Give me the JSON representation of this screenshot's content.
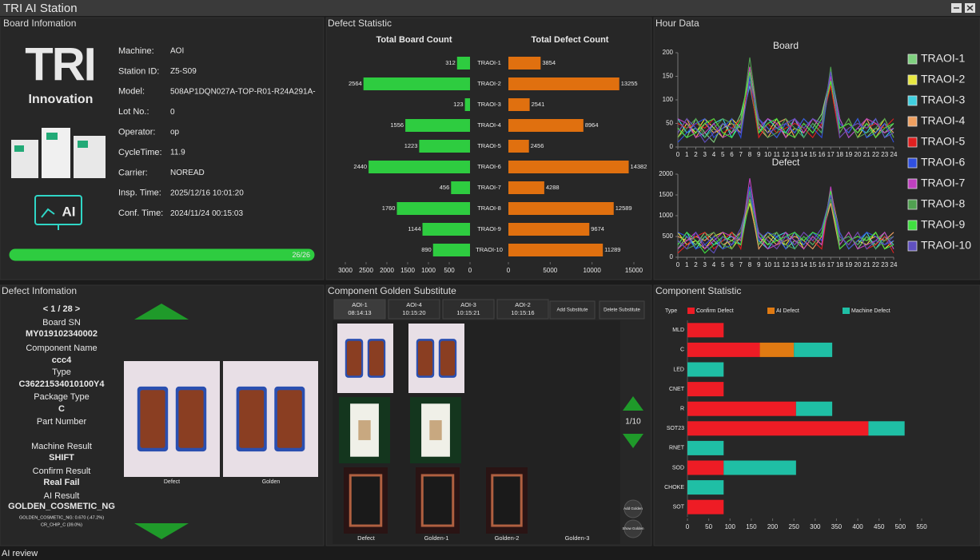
{
  "header": {
    "title": "TRI AI Station"
  },
  "board_info": {
    "heading": "Board Infomation",
    "logo": "TRI",
    "logo_sub": "Innovation",
    "badge": "AI",
    "fields": [
      {
        "label": "Machine:",
        "value": "AOI"
      },
      {
        "label": "Station ID:",
        "value": "Z5-S09"
      },
      {
        "label": "Model:",
        "value": "508AP1DQN027A-TOP-R01-R24A291A-"
      },
      {
        "label": "Lot No.:",
        "value": "0"
      },
      {
        "label": "Operator:",
        "value": "op"
      },
      {
        "label": "CycleTime:",
        "value": "11.9"
      },
      {
        "label": "Carrier:",
        "value": "NOREAD"
      },
      {
        "label": "Insp. Time:",
        "value": "2025/12/16 10:01:20"
      },
      {
        "label": "Conf. Time:",
        "value": "2024/11/24 00:15:03"
      }
    ],
    "progress": {
      "label": "26/26",
      "value": 26,
      "max": 26
    }
  },
  "panels": {
    "defect_statistic": "Defect Statistic",
    "hour_data": "Hour Data",
    "component_golden": "Component Golden Substitute",
    "component_statistic": "Component Statistic"
  },
  "defect_info": {
    "heading": "Defect Infomation",
    "nav": "< 1 / 28 >",
    "fields": [
      {
        "label": "Board SN",
        "value": "MY019102340002"
      },
      {
        "label": "Component Name",
        "value": "ccc4"
      },
      {
        "label": "Type",
        "value": "C36221534010100Y4"
      },
      {
        "label": "Package Type",
        "value": "C"
      },
      {
        "label": "Part Number"
      },
      {
        "label": "Machine Result",
        "value": "SHIFT"
      },
      {
        "label": "Confirm Result",
        "value": "Real Fail"
      },
      {
        "label": "AI Result",
        "value": "GOLDEN_COSMETIC_NG"
      }
    ],
    "ai_details": [
      "GOLDEN_COSMETIC_NG: 0.670 (-47.2%)",
      "CR_CHIP_C (39.0%)"
    ],
    "images": [
      "Defect",
      "Golden"
    ]
  },
  "golden": {
    "tabs": [
      {
        "name": "AOI-1",
        "time": "08:14:13"
      },
      {
        "name": "AOI-4",
        "time": "10:15:20"
      },
      {
        "name": "AOI-3",
        "time": "10:15:21"
      },
      {
        "name": "AOI-2",
        "time": "10:15:16"
      }
    ],
    "buttons": [
      "Add Substitute",
      "Delete Substitute"
    ],
    "page": "1/10",
    "side_buttons": [
      "Add Golden",
      "Show Golden"
    ],
    "images": [
      "Defect",
      "Golden-1",
      "Golden-2",
      "Golden-3"
    ]
  },
  "chart_data": [
    {
      "type": "bar",
      "orientation": "horizontal",
      "title": "Total Board Count",
      "color": "#2ecc40",
      "categories": [
        "TRAOI-1",
        "TRAOI-2",
        "TRAOI-3",
        "TRAOI-4",
        "TRAOI-5",
        "TRAOI-6",
        "TRAOI-7",
        "TRAOI-8",
        "TRAOI-9",
        "TRAOI-10"
      ],
      "values": [
        312,
        2564,
        123,
        1556,
        1223,
        2440,
        456,
        1760,
        1144,
        890
      ],
      "xlim": [
        3000,
        0
      ],
      "xticks": [
        3000,
        2500,
        2000,
        1500,
        1000,
        500,
        0
      ]
    },
    {
      "type": "bar",
      "orientation": "horizontal",
      "title": "Total Defect Count",
      "color": "#e0700f",
      "values": [
        3854,
        13255,
        2541,
        8964,
        2456,
        14382,
        4288,
        12589,
        9674,
        11289
      ],
      "xlim": [
        0,
        15000
      ],
      "xticks": [
        0,
        5000,
        10000,
        15000
      ]
    },
    {
      "type": "line",
      "title": "Board",
      "x": [
        0,
        1,
        2,
        3,
        4,
        5,
        6,
        7,
        8,
        9,
        10,
        11,
        12,
        13,
        14,
        15,
        16,
        17,
        18,
        19,
        20,
        21,
        22,
        23,
        24
      ],
      "xlim": [
        0,
        24
      ],
      "xticks": [
        0,
        1,
        2,
        3,
        4,
        5,
        6,
        7,
        8,
        9,
        10,
        11,
        12,
        13,
        14,
        15,
        16,
        17,
        18,
        19,
        20,
        21,
        22,
        23,
        24
      ],
      "ylim": [
        0,
        200
      ],
      "yticks": [
        0,
        50,
        100,
        150,
        200
      ],
      "series": [
        {
          "name": "TRAOI-1",
          "color": "#7fd17f",
          "values": [
            40,
            20,
            60,
            30,
            10,
            50,
            30,
            70,
            150,
            60,
            40,
            20,
            50,
            30,
            60,
            40,
            70,
            150,
            50,
            30,
            60,
            20,
            40,
            30,
            50
          ]
        },
        {
          "name": "TRAOI-2",
          "color": "#e8e840",
          "values": [
            20,
            50,
            30,
            60,
            40,
            20,
            60,
            40,
            170,
            50,
            30,
            60,
            20,
            40,
            30,
            60,
            40,
            140,
            30,
            60,
            20,
            50,
            30,
            60,
            20
          ]
        },
        {
          "name": "TRAOI-3",
          "color": "#40d0e0",
          "values": [
            60,
            30,
            40,
            20,
            50,
            60,
            20,
            50,
            130,
            30,
            60,
            40,
            30,
            60,
            20,
            50,
            30,
            160,
            60,
            20,
            40,
            30,
            60,
            20,
            40
          ]
        },
        {
          "name": "TRAOI-4",
          "color": "#f0a060",
          "values": [
            30,
            60,
            20,
            50,
            30,
            40,
            50,
            30,
            160,
            40,
            20,
            50,
            60,
            20,
            50,
            30,
            60,
            150,
            40,
            50,
            30,
            60,
            20,
            50,
            30
          ]
        },
        {
          "name": "TRAOI-5",
          "color": "#e02020",
          "values": [
            50,
            40,
            50,
            40,
            60,
            30,
            40,
            60,
            140,
            20,
            50,
            30,
            40,
            50,
            40,
            20,
            50,
            130,
            20,
            40,
            50,
            40,
            50,
            40,
            60
          ]
        },
        {
          "name": "TRAOI-6",
          "color": "#3050e0",
          "values": [
            10,
            30,
            50,
            60,
            20,
            40,
            60,
            20,
            150,
            60,
            40,
            20,
            50,
            30,
            60,
            40,
            20,
            160,
            50,
            30,
            60,
            20,
            30,
            50,
            10
          ]
        },
        {
          "name": "TRAOI-7",
          "color": "#c040c0",
          "values": [
            60,
            50,
            20,
            30,
            50,
            20,
            30,
            50,
            170,
            40,
            60,
            50,
            20,
            60,
            30,
            60,
            40,
            150,
            60,
            20,
            40,
            60,
            50,
            30,
            40
          ]
        },
        {
          "name": "TRAOI-8",
          "color": "#50a050",
          "values": [
            20,
            40,
            60,
            20,
            40,
            60,
            50,
            40,
            190,
            50,
            20,
            30,
            60,
            40,
            20,
            50,
            30,
            170,
            30,
            60,
            20,
            30,
            40,
            60,
            20
          ]
        },
        {
          "name": "TRAOI-9",
          "color": "#40e040",
          "values": [
            40,
            20,
            30,
            50,
            60,
            30,
            20,
            60,
            160,
            30,
            50,
            60,
            30,
            20,
            50,
            30,
            60,
            140,
            40,
            50,
            30,
            50,
            20,
            40,
            50
          ]
        },
        {
          "name": "TRAOI-10",
          "color": "#6050c0",
          "values": [
            30,
            60,
            40,
            10,
            30,
            50,
            40,
            30,
            140,
            60,
            30,
            40,
            50,
            60,
            40,
            60,
            50,
            160,
            20,
            40,
            50,
            40,
            60,
            20,
            30
          ]
        }
      ]
    },
    {
      "type": "line",
      "title": "Defect",
      "x": [
        0,
        1,
        2,
        3,
        4,
        5,
        6,
        7,
        8,
        9,
        10,
        11,
        12,
        13,
        14,
        15,
        16,
        17,
        18,
        19,
        20,
        21,
        22,
        23,
        24
      ],
      "xlim": [
        0,
        24
      ],
      "xticks": [
        0,
        1,
        2,
        3,
        4,
        5,
        6,
        7,
        8,
        9,
        10,
        11,
        12,
        13,
        14,
        15,
        16,
        17,
        18,
        19,
        20,
        21,
        22,
        23,
        24
      ],
      "ylim": [
        0,
        2000
      ],
      "yticks": [
        0,
        500,
        1000,
        1500,
        2000
      ],
      "series": [
        {
          "color": "#7fd17f",
          "values": [
            200,
            500,
            300,
            600,
            400,
            200,
            600,
            400,
            1700,
            500,
            300,
            600,
            200,
            400,
            300,
            600,
            400,
            1400,
            300,
            600,
            200,
            500,
            300,
            600,
            200
          ]
        },
        {
          "color": "#e8e840",
          "values": [
            600,
            300,
            400,
            200,
            500,
            600,
            200,
            500,
            1300,
            300,
            600,
            400,
            300,
            600,
            200,
            500,
            300,
            1600,
            600,
            200,
            400,
            300,
            600,
            200,
            400
          ]
        },
        {
          "color": "#40d0e0",
          "values": [
            300,
            600,
            200,
            500,
            300,
            400,
            500,
            300,
            1600,
            400,
            200,
            500,
            600,
            200,
            500,
            300,
            600,
            1500,
            400,
            500,
            300,
            600,
            200,
            500,
            300
          ]
        },
        {
          "color": "#f0a060",
          "values": [
            500,
            400,
            500,
            400,
            600,
            300,
            400,
            600,
            1400,
            200,
            500,
            300,
            400,
            500,
            400,
            200,
            500,
            1300,
            200,
            400,
            500,
            400,
            500,
            400,
            600
          ]
        },
        {
          "color": "#e02020",
          "values": [
            100,
            300,
            500,
            600,
            200,
            400,
            600,
            200,
            1500,
            600,
            400,
            200,
            500,
            300,
            600,
            400,
            200,
            1600,
            500,
            300,
            600,
            200,
            300,
            500,
            100
          ]
        },
        {
          "color": "#3050e0",
          "values": [
            600,
            500,
            200,
            300,
            500,
            200,
            300,
            500,
            1700,
            400,
            600,
            500,
            200,
            600,
            300,
            600,
            400,
            1500,
            600,
            200,
            400,
            600,
            500,
            300,
            400
          ]
        },
        {
          "color": "#c040c0",
          "values": [
            200,
            400,
            600,
            200,
            400,
            600,
            500,
            400,
            1900,
            500,
            200,
            300,
            600,
            400,
            200,
            500,
            300,
            1700,
            300,
            600,
            200,
            300,
            400,
            600,
            200
          ]
        },
        {
          "color": "#50a050",
          "values": [
            400,
            200,
            300,
            500,
            600,
            300,
            200,
            600,
            1600,
            300,
            500,
            600,
            300,
            200,
            500,
            300,
            600,
            1400,
            400,
            500,
            300,
            500,
            200,
            400,
            500
          ]
        },
        {
          "color": "#40e040",
          "values": [
            300,
            600,
            400,
            100,
            300,
            500,
            400,
            300,
            1400,
            600,
            300,
            400,
            500,
            600,
            400,
            600,
            500,
            1600,
            200,
            400,
            500,
            400,
            600,
            200,
            300
          ]
        },
        {
          "color": "#6050c0",
          "values": [
            400,
            200,
            600,
            300,
            100,
            500,
            300,
            700,
            1500,
            600,
            400,
            200,
            500,
            300,
            600,
            400,
            700,
            1500,
            500,
            300,
            600,
            200,
            400,
            300,
            500
          ]
        }
      ]
    },
    {
      "type": "bar",
      "orientation": "horizontal",
      "stacked": true,
      "legend_title": "Type",
      "categories": [
        "MLD",
        "C",
        "LED",
        "CNET",
        "R",
        "SOT23",
        "RNET",
        "SOD",
        "CHOKE",
        "SOT"
      ],
      "xlim": [
        0,
        550
      ],
      "xticks": [
        0,
        50,
        100,
        150,
        200,
        250,
        300,
        350,
        400,
        450,
        500,
        550
      ],
      "series": [
        {
          "name": "Confirm Defect",
          "color": "#ee1c25",
          "values": [
            85,
            170,
            0,
            85,
            255,
            425,
            0,
            85,
            0,
            85
          ]
        },
        {
          "name": "AI Defect",
          "color": "#e07a12",
          "values": [
            0,
            80,
            0,
            0,
            0,
            0,
            0,
            0,
            0,
            0
          ]
        },
        {
          "name": "Machine Defect",
          "color": "#1fbfa5",
          "values": [
            0,
            90,
            85,
            0,
            85,
            85,
            85,
            170,
            85,
            0
          ]
        }
      ]
    }
  ],
  "footer": {
    "status": "AI review"
  }
}
